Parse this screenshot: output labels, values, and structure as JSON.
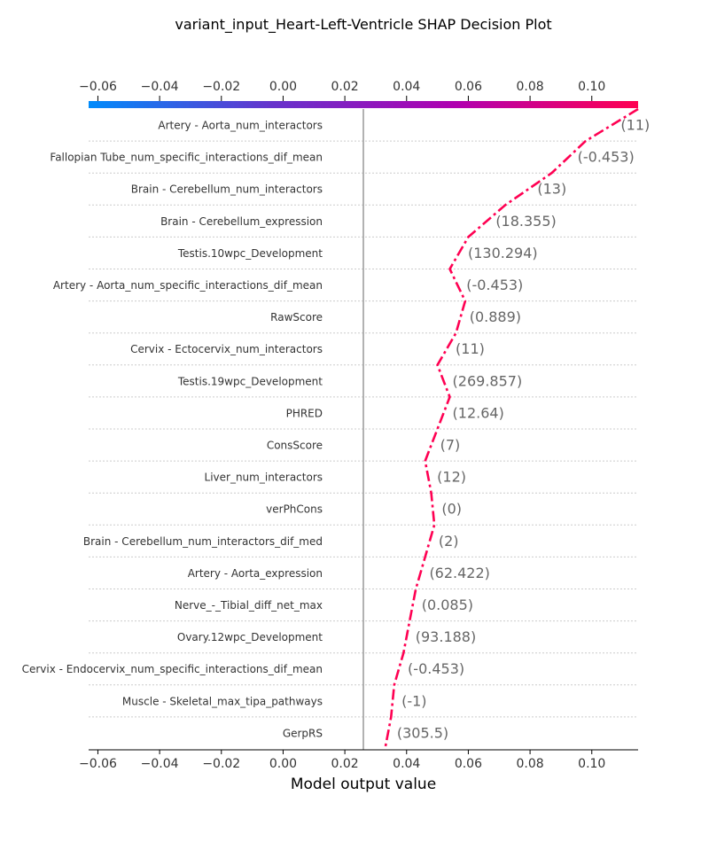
{
  "chart_data": {
    "type": "line",
    "title": "variant_input_Heart-Left-Ventricle SHAP Decision Plot",
    "xlabel": "Model output value",
    "xlim": [
      -0.063,
      0.115
    ],
    "base_value": 0.026,
    "x_ticks": [
      -0.06,
      -0.04,
      -0.02,
      0.0,
      0.02,
      0.04,
      0.06,
      0.08,
      0.1
    ],
    "x_tick_labels": [
      "−0.06",
      "−0.04",
      "−0.02",
      "0.00",
      "0.02",
      "0.04",
      "0.06",
      "0.08",
      "0.10"
    ],
    "colorbar": [
      "#008bfb",
      "#6633cc",
      "#b000b0",
      "#ff0052"
    ],
    "line_color": "#ff0052",
    "features": [
      {
        "name": "Artery - Aorta_num_interactors",
        "value": "(11)"
      },
      {
        "name": "Fallopian Tube_num_specific_interactions_dif_mean",
        "value": "(-0.453)"
      },
      {
        "name": "Brain - Cerebellum_num_interactors",
        "value": "(13)"
      },
      {
        "name": "Brain - Cerebellum_expression",
        "value": "(18.355)"
      },
      {
        "name": "Testis.10wpc_Development",
        "value": "(130.294)"
      },
      {
        "name": "Artery - Aorta_num_specific_interactions_dif_mean",
        "value": "(-0.453)"
      },
      {
        "name": "RawScore",
        "value": "(0.889)"
      },
      {
        "name": "Cervix - Ectocervix_num_interactors",
        "value": "(11)"
      },
      {
        "name": "Testis.19wpc_Development",
        "value": "(269.857)"
      },
      {
        "name": "PHRED",
        "value": "(12.64)"
      },
      {
        "name": "ConsScore",
        "value": "(7)"
      },
      {
        "name": "Liver_num_interactors",
        "value": "(12)"
      },
      {
        "name": "verPhCons",
        "value": "(0)"
      },
      {
        "name": "Brain - Cerebellum_num_interactors_dif_med",
        "value": "(2)"
      },
      {
        "name": "Artery - Aorta_expression",
        "value": "(62.422)"
      },
      {
        "name": "Nerve_-_Tibial_diff_net_max",
        "value": "(0.085)"
      },
      {
        "name": "Ovary.12wpc_Development",
        "value": "(93.188)"
      },
      {
        "name": "Cervix - Endocervix_num_specific_interactions_dif_mean",
        "value": "(-0.453)"
      },
      {
        "name": "Muscle - Skeletal_max_tipa_pathways",
        "value": "(-1)"
      },
      {
        "name": "GerpRS",
        "value": "(305.5)"
      }
    ],
    "path": [
      0.115,
      0.098,
      0.087,
      0.072,
      0.06,
      0.054,
      0.059,
      0.056,
      0.05,
      0.054,
      0.05,
      0.046,
      0.048,
      0.049,
      0.046,
      0.043,
      0.041,
      0.039,
      0.036,
      0.035,
      0.033
    ]
  }
}
